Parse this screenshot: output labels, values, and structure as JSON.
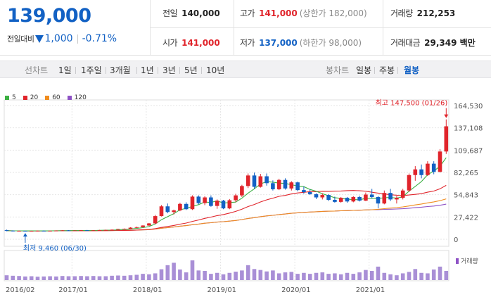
{
  "quote": {
    "price": "139,000",
    "change_label": "전일대비",
    "change_amount": "1,000",
    "change_rate": "-0.71%",
    "prev_close_label": "전일",
    "prev_close": "140,000",
    "high_label": "고가",
    "high": "141,000",
    "upper_limit": "(상한가 182,000)",
    "volume_label": "거래량",
    "volume": "212,253",
    "open_label": "시가",
    "open": "141,000",
    "low_label": "저가",
    "low": "137,000",
    "lower_limit": "(하한가 98,000)",
    "trade_value_label": "거래대금",
    "trade_value": "29,349 백만"
  },
  "toolbar": {
    "line_chart_label": "선차트",
    "periods": [
      "1일",
      "1주일",
      "3개월",
      "1년",
      "3년",
      "5년",
      "10년"
    ],
    "candle_chart_label": "봉차트",
    "candle_periods": [
      "일봉",
      "주봉",
      "월봉"
    ],
    "active_candle_period": "월봉"
  },
  "chart_data": {
    "type": "candlestick",
    "interval": "monthly",
    "legend": [
      {
        "name": "5",
        "color": "#3cb043"
      },
      {
        "name": "20",
        "color": "#e0242b"
      },
      {
        "name": "60",
        "color": "#f08c1e"
      },
      {
        "name": "120",
        "color": "#8e52c5"
      }
    ],
    "y_ticks": [
      "164,530",
      "137,108",
      "109,687",
      "82,265",
      "54,843",
      "27,422",
      "0"
    ],
    "ylim": [
      0,
      164530
    ],
    "x_ticks": [
      "2016/02",
      "2017/01",
      "2018/01",
      "2019/01",
      "2020/01",
      "2021/01"
    ],
    "max_annotation": "최고 147,500 (01/26)",
    "min_annotation": "최저 9,460 (06/30)",
    "volume_label": "거래량",
    "candles": [
      [
        11200,
        11800,
        9800,
        10600
      ],
      [
        10600,
        11000,
        9500,
        10200
      ],
      [
        10200,
        10800,
        9600,
        10400
      ],
      [
        10400,
        10700,
        9460,
        10100
      ],
      [
        10100,
        10600,
        9700,
        10300
      ],
      [
        10300,
        10800,
        9900,
        10500
      ],
      [
        10500,
        10900,
        10000,
        10200
      ],
      [
        10200,
        10700,
        9800,
        10500
      ],
      [
        10500,
        11000,
        10100,
        10700
      ],
      [
        10700,
        11200,
        10300,
        10900
      ],
      [
        10900,
        11300,
        10400,
        10600
      ],
      [
        10600,
        11000,
        10200,
        10800
      ],
      [
        10800,
        11400,
        10500,
        11100
      ],
      [
        11100,
        11500,
        10600,
        10800
      ],
      [
        10800,
        11300,
        10400,
        11000
      ],
      [
        11000,
        11600,
        10700,
        11300
      ],
      [
        11300,
        11800,
        10900,
        11500
      ],
      [
        11500,
        12100,
        11100,
        11800
      ],
      [
        11800,
        12900,
        11500,
        12600
      ],
      [
        12600,
        13300,
        12000,
        12900
      ],
      [
        12900,
        14800,
        12500,
        14300
      ],
      [
        14300,
        15500,
        13800,
        14900
      ],
      [
        14900,
        17200,
        14500,
        16900
      ],
      [
        16900,
        20000,
        16500,
        19500
      ],
      [
        19500,
        30000,
        18500,
        28500
      ],
      [
        28500,
        42000,
        28000,
        40500
      ],
      [
        40500,
        44000,
        32000,
        33500
      ],
      [
        33500,
        36500,
        30500,
        35500
      ],
      [
        35500,
        45000,
        34500,
        43500
      ],
      [
        43500,
        45500,
        36000,
        37000
      ],
      [
        37000,
        54000,
        36000,
        52500
      ],
      [
        52500,
        54000,
        43000,
        44500
      ],
      [
        44500,
        53000,
        42000,
        51500
      ],
      [
        51500,
        54000,
        40000,
        41000
      ],
      [
        41000,
        49000,
        37500,
        47500
      ],
      [
        47500,
        48500,
        37000,
        38000
      ],
      [
        38000,
        49500,
        37000,
        48000
      ],
      [
        48000,
        56000,
        45500,
        54000
      ],
      [
        54000,
        67000,
        52000,
        65500
      ],
      [
        65500,
        81000,
        63000,
        78500
      ],
      [
        78500,
        82000,
        62000,
        64500
      ],
      [
        64500,
        80500,
        63500,
        77500
      ],
      [
        77500,
        81000,
        66000,
        69000
      ],
      [
        69000,
        72500,
        60000,
        61500
      ],
      [
        61500,
        74500,
        60500,
        73000
      ],
      [
        73000,
        75000,
        61000,
        62500
      ],
      [
        62500,
        71500,
        60000,
        70000
      ],
      [
        70000,
        71000,
        59000,
        60500
      ],
      [
        60500,
        65000,
        56000,
        58000
      ],
      [
        58000,
        61500,
        54500,
        55500
      ],
      [
        55500,
        56500,
        49500,
        51500
      ],
      [
        51500,
        56500,
        49000,
        54500
      ],
      [
        54500,
        55500,
        47000,
        48500
      ],
      [
        48500,
        52500,
        45000,
        46000
      ],
      [
        46000,
        52000,
        45000,
        51000
      ],
      [
        51000,
        52000,
        45000,
        46500
      ],
      [
        46500,
        53000,
        45500,
        52000
      ],
      [
        52000,
        53500,
        46500,
        47500
      ],
      [
        47500,
        57500,
        47000,
        55000
      ],
      [
        55000,
        62000,
        50000,
        52000
      ],
      [
        52000,
        53000,
        38000,
        44000
      ],
      [
        44000,
        60000,
        43000,
        57000
      ],
      [
        57000,
        62000,
        47000,
        49000
      ],
      [
        49000,
        53000,
        44000,
        51000
      ],
      [
        51000,
        62000,
        49000,
        60000
      ],
      [
        60000,
        81000,
        58000,
        79000
      ],
      [
        79000,
        90000,
        72000,
        86000
      ],
      [
        86000,
        92000,
        75000,
        79000
      ],
      [
        79000,
        96000,
        78000,
        93000
      ],
      [
        93000,
        96000,
        80000,
        83000
      ],
      [
        83000,
        111000,
        82000,
        108000
      ],
      [
        108000,
        147500,
        105000,
        139000
      ]
    ],
    "volumes": [
      20,
      18,
      17,
      15,
      16,
      14,
      15,
      16,
      15,
      17,
      16,
      16,
      17,
      16,
      17,
      16,
      16,
      18,
      19,
      18,
      20,
      22,
      26,
      24,
      28,
      45,
      62,
      72,
      44,
      32,
      82,
      40,
      38,
      26,
      30,
      24,
      30,
      35,
      40,
      62,
      46,
      42,
      36,
      40,
      28,
      32,
      34,
      26,
      30,
      26,
      30,
      32,
      26,
      28,
      24,
      30,
      26,
      32,
      42,
      38,
      56,
      30,
      24,
      20,
      28,
      34,
      46,
      30,
      28,
      44,
      56,
      38
    ]
  }
}
